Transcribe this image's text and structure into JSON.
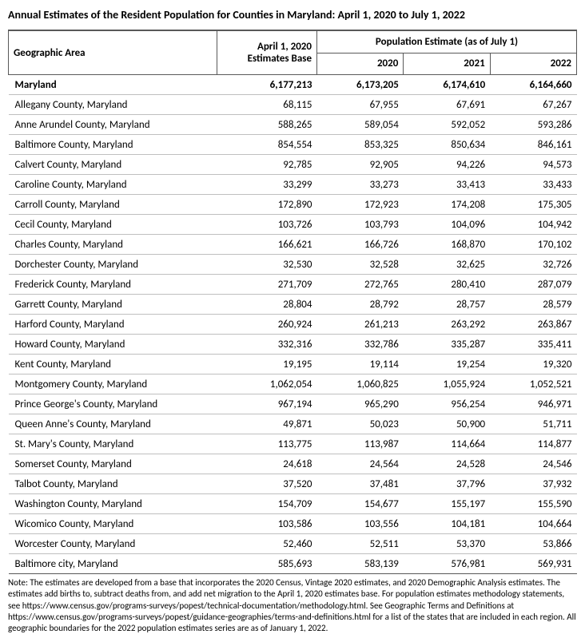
{
  "title": "Annual Estimates of the Resident Population for Counties in Maryland: April 1, 2020 to July 1, 2022",
  "headers": {
    "area": "Geographic Area",
    "base": "April 1, 2020 Estimates Base",
    "est_span": "Population Estimate (as of July 1)",
    "y2020": "2020",
    "y2021": "2021",
    "y2022": "2022"
  },
  "columns": [
    "area",
    "base",
    "y2020",
    "y2021",
    "y2022"
  ],
  "col_widths": {
    "area": 248,
    "base": 112,
    "est": 112
  },
  "rows": [
    {
      "area": "Maryland",
      "base": "6,177,213",
      "y2020": "6,173,205",
      "y2021": "6,174,610",
      "y2022": "6,164,660",
      "bold": true
    },
    {
      "area": "Allegany County, Maryland",
      "base": "68,115",
      "y2020": "67,955",
      "y2021": "67,691",
      "y2022": "67,267"
    },
    {
      "area": "Anne Arundel County, Maryland",
      "base": "588,265",
      "y2020": "589,054",
      "y2021": "592,052",
      "y2022": "593,286"
    },
    {
      "area": "Baltimore County, Maryland",
      "base": "854,554",
      "y2020": "853,325",
      "y2021": "850,634",
      "y2022": "846,161"
    },
    {
      "area": "Calvert County, Maryland",
      "base": "92,785",
      "y2020": "92,905",
      "y2021": "94,226",
      "y2022": "94,573"
    },
    {
      "area": "Caroline County, Maryland",
      "base": "33,299",
      "y2020": "33,273",
      "y2021": "33,413",
      "y2022": "33,433"
    },
    {
      "area": "Carroll County, Maryland",
      "base": "172,890",
      "y2020": "172,923",
      "y2021": "174,208",
      "y2022": "175,305"
    },
    {
      "area": "Cecil County, Maryland",
      "base": "103,726",
      "y2020": "103,793",
      "y2021": "104,096",
      "y2022": "104,942"
    },
    {
      "area": "Charles County, Maryland",
      "base": "166,621",
      "y2020": "166,726",
      "y2021": "168,870",
      "y2022": "170,102"
    },
    {
      "area": "Dorchester County, Maryland",
      "base": "32,530",
      "y2020": "32,528",
      "y2021": "32,625",
      "y2022": "32,726"
    },
    {
      "area": "Frederick County, Maryland",
      "base": "271,709",
      "y2020": "272,765",
      "y2021": "280,410",
      "y2022": "287,079"
    },
    {
      "area": "Garrett County, Maryland",
      "base": "28,804",
      "y2020": "28,792",
      "y2021": "28,757",
      "y2022": "28,579"
    },
    {
      "area": "Harford County, Maryland",
      "base": "260,924",
      "y2020": "261,213",
      "y2021": "263,292",
      "y2022": "263,867"
    },
    {
      "area": "Howard County, Maryland",
      "base": "332,316",
      "y2020": "332,786",
      "y2021": "335,287",
      "y2022": "335,411"
    },
    {
      "area": "Kent County, Maryland",
      "base": "19,195",
      "y2020": "19,114",
      "y2021": "19,254",
      "y2022": "19,320"
    },
    {
      "area": "Montgomery County, Maryland",
      "base": "1,062,054",
      "y2020": "1,060,825",
      "y2021": "1,055,924",
      "y2022": "1,052,521"
    },
    {
      "area": "Prince George's County, Maryland",
      "base": "967,194",
      "y2020": "965,290",
      "y2021": "956,254",
      "y2022": "946,971"
    },
    {
      "area": "Queen Anne's County, Maryland",
      "base": "49,871",
      "y2020": "50,023",
      "y2021": "50,900",
      "y2022": "51,711"
    },
    {
      "area": "St. Mary's County, Maryland",
      "base": "113,775",
      "y2020": "113,987",
      "y2021": "114,664",
      "y2022": "114,877"
    },
    {
      "area": "Somerset County, Maryland",
      "base": "24,618",
      "y2020": "24,564",
      "y2021": "24,528",
      "y2022": "24,546"
    },
    {
      "area": "Talbot County, Maryland",
      "base": "37,520",
      "y2020": "37,481",
      "y2021": "37,796",
      "y2022": "37,932"
    },
    {
      "area": "Washington County, Maryland",
      "base": "154,709",
      "y2020": "154,677",
      "y2021": "155,197",
      "y2022": "155,590"
    },
    {
      "area": "Wicomico County, Maryland",
      "base": "103,586",
      "y2020": "103,556",
      "y2021": "104,181",
      "y2022": "104,664"
    },
    {
      "area": "Worcester County, Maryland",
      "base": "52,460",
      "y2020": "52,511",
      "y2021": "53,370",
      "y2022": "53,866"
    },
    {
      "area": "Baltimore city, Maryland",
      "base": "585,693",
      "y2020": "583,139",
      "y2021": "576,981",
      "y2022": "569,931"
    }
  ],
  "note": "Note: The estimates are developed from a base that incorporates the 2020 Census, Vintage 2020 estimates, and 2020 Demographic Analysis estimates. The estimates add births to, subtract deaths from, and add net migration to the April 1, 2020 estimates base. For population estimates methodology statements, see https://www.census.gov/programs-surveys/popest/technical-documentation/methodology.html. See Geographic Terms and Definitions at https://www.census.gov/programs-surveys/popest/guidance-geographies/terms-and-definitions.html for a list of the states that are included in each region. All geographic boundaries for the 2022 population estimates series are as of January 1, 2022.",
  "styling": {
    "font_family": "Calibri, Arial, sans-serif",
    "body_font_size": 13,
    "title_font_size": 14,
    "note_font_size": 11,
    "row_border_color": "#bfbfbf",
    "header_border_color": "#595959",
    "background_color": "#ffffff",
    "text_color": "#000000"
  }
}
